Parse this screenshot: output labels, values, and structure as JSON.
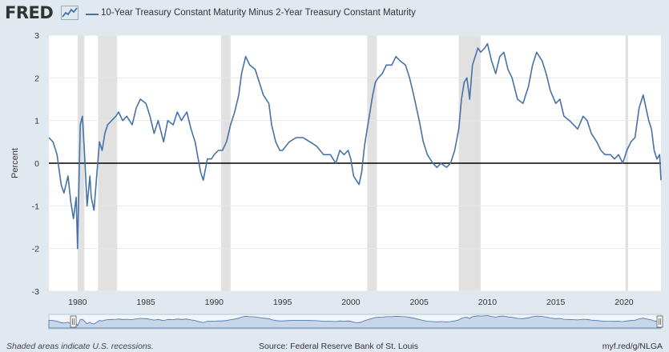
{
  "header": {
    "logo": "FRED",
    "logo_icon": "chart-line-icon",
    "series_title": "10-Year Treasury Constant Maturity Minus 2-Year Treasury Constant Maturity"
  },
  "footer": {
    "note": "Shaded areas indicate U.S. recessions.",
    "source": "Source: Federal Reserve Bank of St. Louis",
    "link": "myf.red/g/NLGA"
  },
  "colors": {
    "line": "#4572a7",
    "recession": "#e1e1e1",
    "page_bg": "#e1e9f0",
    "plot_bg": "#ffffff"
  },
  "chart_data": {
    "type": "line",
    "title": "10-Year Treasury Constant Maturity Minus 2-Year Treasury Constant Maturity",
    "xlabel": "",
    "ylabel": "Percent",
    "xlim": [
      1977.9,
      2022.7
    ],
    "ylim": [
      -3,
      3
    ],
    "y_ticks": [
      3,
      2,
      1,
      0,
      -1,
      -2,
      -3
    ],
    "x_ticks": [
      1980,
      1985,
      1990,
      1995,
      2000,
      2005,
      2010,
      2015,
      2020
    ],
    "grid": true,
    "recessions": [
      [
        1980.0,
        1980.5
      ],
      [
        1981.5,
        1982.9
      ],
      [
        1990.5,
        1991.2
      ],
      [
        2001.2,
        2001.9
      ],
      [
        2007.9,
        2009.5
      ],
      [
        2020.1,
        2020.3
      ]
    ],
    "series": [
      {
        "name": "10-Year Treasury Constant Maturity Minus 2-Year Treasury Constant Maturity",
        "x": [
          1977.9,
          1978.2,
          1978.5,
          1978.8,
          1979.0,
          1979.3,
          1979.5,
          1979.7,
          1979.9,
          1980.0,
          1980.1,
          1980.2,
          1980.35,
          1980.5,
          1980.7,
          1980.9,
          1981.0,
          1981.2,
          1981.4,
          1981.6,
          1981.8,
          1982.0,
          1982.2,
          1982.5,
          1982.8,
          1983.0,
          1983.3,
          1983.6,
          1984.0,
          1984.3,
          1984.6,
          1985.0,
          1985.3,
          1985.6,
          1985.9,
          1986.3,
          1986.6,
          1987.0,
          1987.3,
          1987.6,
          1988.0,
          1988.3,
          1988.6,
          1989.0,
          1989.2,
          1989.5,
          1989.8,
          1990.0,
          1990.3,
          1990.6,
          1990.9,
          1991.2,
          1991.5,
          1991.8,
          1992.0,
          1992.3,
          1992.6,
          1993.0,
          1993.3,
          1993.6,
          1994.0,
          1994.2,
          1994.5,
          1994.8,
          1995.0,
          1995.5,
          1996.0,
          1996.5,
          1997.0,
          1997.5,
          1998.0,
          1998.5,
          1998.9,
          1999.2,
          1999.5,
          1999.8,
          2000.0,
          2000.2,
          2000.4,
          2000.6,
          2000.8,
          2001.0,
          2001.2,
          2001.4,
          2001.6,
          2001.8,
          2002.0,
          2002.3,
          2002.6,
          2003.0,
          2003.3,
          2003.6,
          2004.0,
          2004.3,
          2004.6,
          2005.0,
          2005.3,
          2005.6,
          2006.0,
          2006.3,
          2006.6,
          2007.0,
          2007.3,
          2007.6,
          2007.9,
          2008.1,
          2008.3,
          2008.5,
          2008.7,
          2008.9,
          2009.1,
          2009.3,
          2009.5,
          2009.8,
          2010.0,
          2010.3,
          2010.6,
          2010.9,
          2011.2,
          2011.5,
          2011.8,
          2012.2,
          2012.6,
          2013.0,
          2013.3,
          2013.6,
          2014.0,
          2014.3,
          2014.6,
          2015.0,
          2015.3,
          2015.6,
          2016.0,
          2016.3,
          2016.6,
          2017.0,
          2017.3,
          2017.6,
          2018.0,
          2018.3,
          2018.6,
          2019.0,
          2019.3,
          2019.6,
          2019.9,
          2020.2,
          2020.5,
          2020.8,
          2021.1,
          2021.4,
          2021.6,
          2021.8,
          2022.0,
          2022.2,
          2022.4,
          2022.6,
          2022.7
        ],
        "values": [
          0.6,
          0.5,
          0.2,
          -0.5,
          -0.7,
          -0.3,
          -0.9,
          -1.3,
          -0.8,
          -2.0,
          -0.5,
          0.9,
          1.1,
          0.3,
          -1.0,
          -0.3,
          -0.8,
          -1.1,
          -0.3,
          0.5,
          0.3,
          0.7,
          0.9,
          1.0,
          1.1,
          1.2,
          1.0,
          1.1,
          0.9,
          1.3,
          1.5,
          1.4,
          1.1,
          0.7,
          1.0,
          0.5,
          1.0,
          0.9,
          1.2,
          1.0,
          1.2,
          0.8,
          0.5,
          -0.2,
          -0.4,
          0.1,
          0.1,
          0.2,
          0.3,
          0.3,
          0.5,
          0.9,
          1.2,
          1.6,
          2.1,
          2.5,
          2.3,
          2.2,
          1.9,
          1.6,
          1.4,
          0.9,
          0.5,
          0.3,
          0.3,
          0.5,
          0.6,
          0.6,
          0.5,
          0.4,
          0.2,
          0.2,
          0.0,
          0.3,
          0.2,
          0.3,
          0.1,
          -0.3,
          -0.4,
          -0.5,
          -0.2,
          0.4,
          0.8,
          1.2,
          1.6,
          1.9,
          2.0,
          2.1,
          2.3,
          2.3,
          2.5,
          2.4,
          2.3,
          2.0,
          1.6,
          1.0,
          0.5,
          0.2,
          0.0,
          -0.1,
          0.0,
          -0.1,
          0.0,
          0.3,
          0.8,
          1.5,
          1.9,
          2.0,
          1.5,
          2.3,
          2.5,
          2.7,
          2.6,
          2.7,
          2.8,
          2.4,
          2.1,
          2.5,
          2.6,
          2.2,
          2.0,
          1.5,
          1.4,
          1.8,
          2.3,
          2.6,
          2.4,
          2.1,
          1.7,
          1.4,
          1.5,
          1.1,
          1.0,
          0.9,
          0.8,
          1.1,
          1.0,
          0.7,
          0.5,
          0.3,
          0.2,
          0.2,
          0.1,
          0.2,
          0.0,
          0.3,
          0.5,
          0.6,
          1.3,
          1.6,
          1.3,
          1.0,
          0.8,
          0.3,
          0.1,
          0.2,
          -0.4
        ]
      }
    ]
  }
}
